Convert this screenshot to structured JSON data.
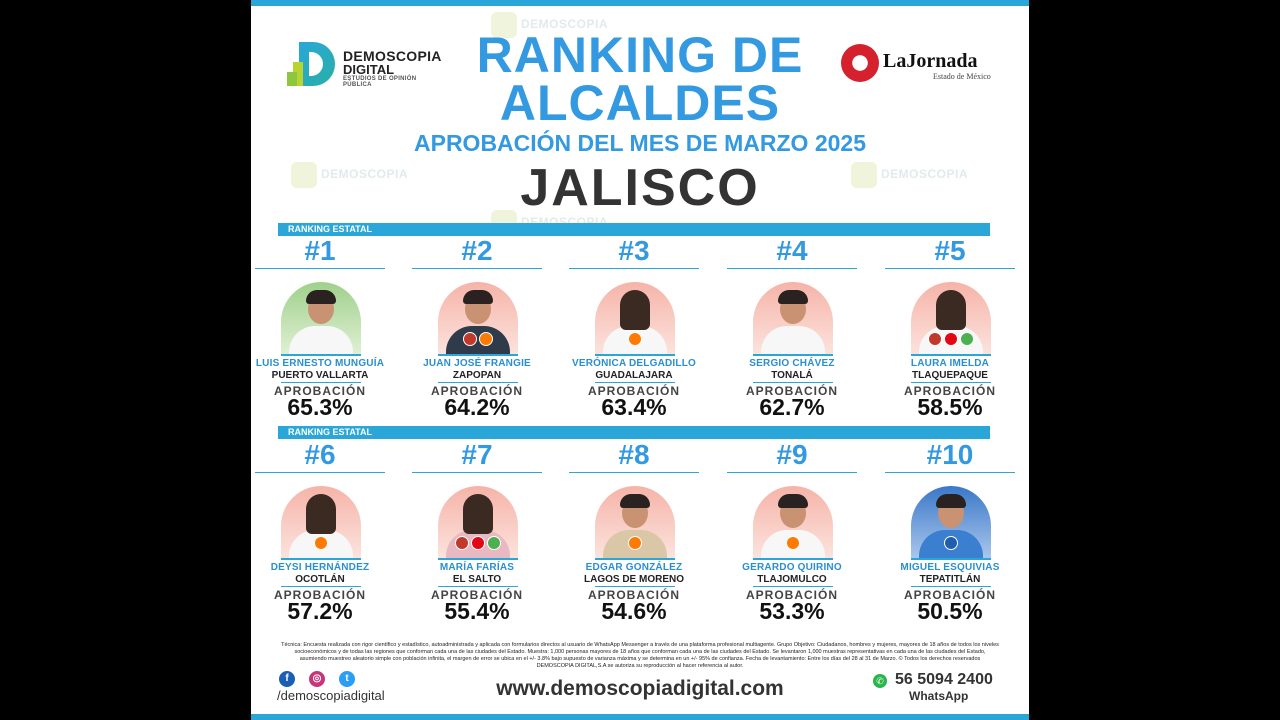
{
  "brand": {
    "dd_line1": "DEMOSCOPIA",
    "dd_line2": "DIGITAL",
    "dd_tagline": "ESTUDIOS DE OPINIÓN PÚBLICA",
    "lj_name": "LaJornada",
    "lj_sub": "Estado de México"
  },
  "watermark": {
    "line1": "DEMOSCOPIA",
    "line2": "DIGITAL"
  },
  "title_line1": "RANKING DE",
  "title_line2": "ALCALDES",
  "subtitle": "APROBACIÓN DEL MES DE MARZO 2025",
  "state": "JALISCO",
  "rank_bar_label": "RANKING ESTATAL",
  "approval_label": "APROBACIÓN",
  "mayors": [
    {
      "rank": "#1",
      "name": "LUIS ERNESTO MUNGUÍA",
      "city": "PUERTO VALLARTA",
      "approval": "65.3%",
      "approval_value": 65.3
    },
    {
      "rank": "#2",
      "name": "JUAN JOSÉ FRANGIE",
      "city": "ZAPOPAN",
      "approval": "64.2%",
      "approval_value": 64.2
    },
    {
      "rank": "#3",
      "name": "VERÓNICA DELGADILLO",
      "city": "GUADALAJARA",
      "approval": "63.4%",
      "approval_value": 63.4
    },
    {
      "rank": "#4",
      "name": "SERGIO CHÁVEZ",
      "city": "TONALÁ",
      "approval": "62.7%",
      "approval_value": 62.7
    },
    {
      "rank": "#5",
      "name": "LAURA IMELDA",
      "city": "TLAQUEPAQUE",
      "approval": "58.5%",
      "approval_value": 58.5
    },
    {
      "rank": "#6",
      "name": "DEYSI HERNÁNDEZ",
      "city": "OCOTLÁN",
      "approval": "57.2%",
      "approval_value": 57.2
    },
    {
      "rank": "#7",
      "name": "MARÍA FARÍAS",
      "city": "EL SALTO",
      "approval": "55.4%",
      "approval_value": 55.4
    },
    {
      "rank": "#8",
      "name": "EDGAR GONZÁLEZ",
      "city": "LAGOS DE MORENO",
      "approval": "54.6%",
      "approval_value": 54.6
    },
    {
      "rank": "#9",
      "name": "GERARDO QUIRINO",
      "city": "TLAJOMULCO",
      "approval": "53.3%",
      "approval_value": 53.3
    },
    {
      "rank": "#10",
      "name": "MIGUEL ESQUIVIAS",
      "city": "TEPATITLÁN",
      "approval": "50.5%",
      "approval_value": 50.5
    }
  ],
  "footnote": "Técnica: Encuesta realizada con rigor científico y estadístico, autoadministrada y aplicada con formularios directos al usuario de WhatsApp Messenger a través de una plataforma profesional multiagente. Grupo Objetivo: Ciudadanos, hombres y mujeres, mayores de 18 años de todos los niveles socioeconómicos y de todas las regiones que conforman cada una de las ciudades del Estado. Muestra: 1,000 personas mayores de 18 años que conforman cada una de las ciudades del Estado. Se levantaron 1,000 muestras representativas en cada una de las ciudades del Estado, asumiendo muestreo aleatorio simple con población infinita, el margen de error se ubica en el +/- 3.8% bajo supuesto de varianza máxima y se determina en un +/- 95% de confianza. Fecha de levantamiento: Entre los días del 28 al 31 de Marzo. © Todos los derechos reservados DEMOSCOPIA DIGITAL,S.A se autoriza su reproducción al hacer referencia al autor.",
  "social_handle": "/demoscopiadigital",
  "website": "www.demoscopiadigital.com",
  "phone": "56 5094 2400",
  "whatsapp_label": "WhatsApp",
  "colors": {
    "accent": "#3399e0",
    "bar": "#2aa7d8",
    "dark_text": "#333333"
  }
}
